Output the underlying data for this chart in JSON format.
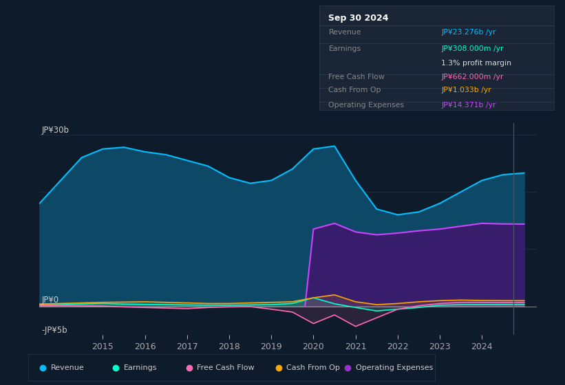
{
  "bg_color": "#0d1b2a",
  "plot_bg_color": "#0d1b2a",
  "ylabel_top": "JP¥30b",
  "ylabel_zero": "JP¥0",
  "ylabel_bottom": "-JP¥5b",
  "ylim_min": -5000000000,
  "ylim_max": 32000000000,
  "xlim_min": 2013.5,
  "xlim_max": 2025.3,
  "xticks": [
    2015,
    2016,
    2017,
    2018,
    2019,
    2020,
    2021,
    2022,
    2023,
    2024
  ],
  "legend_items": [
    {
      "label": "Revenue",
      "color": "#00bfff"
    },
    {
      "label": "Earnings",
      "color": "#00ffcc"
    },
    {
      "label": "Free Cash Flow",
      "color": "#ff69b4"
    },
    {
      "label": "Cash From Op",
      "color": "#ffa500"
    },
    {
      "label": "Operating Expenses",
      "color": "#9932cc"
    }
  ],
  "info_box_date": "Sep 30 2024",
  "info_rows": [
    {
      "label": "Revenue",
      "value": "JP¥23.276b /yr",
      "value_color": "#00bfff",
      "has_sep": true
    },
    {
      "label": "Earnings",
      "value": "JP¥308.000m /yr",
      "value_color": "#00ffcc",
      "has_sep": false
    },
    {
      "label": "",
      "value": "1.3% profit margin",
      "value_color": "#dddddd",
      "has_sep": true
    },
    {
      "label": "Free Cash Flow",
      "value": "JP¥662.000m /yr",
      "value_color": "#ff69b4",
      "has_sep": true
    },
    {
      "label": "Cash From Op",
      "value": "JP¥1.033b /yr",
      "value_color": "#ffa500",
      "has_sep": true
    },
    {
      "label": "Operating Expenses",
      "value": "JP¥14.371b /yr",
      "value_color": "#9932cc",
      "has_sep": false
    }
  ],
  "revenue_x": [
    2013.5,
    2014.0,
    2014.5,
    2015.0,
    2015.5,
    2016.0,
    2016.5,
    2017.0,
    2017.5,
    2018.0,
    2018.5,
    2019.0,
    2019.5,
    2020.0,
    2020.5,
    2021.0,
    2021.5,
    2022.0,
    2022.5,
    2023.0,
    2023.5,
    2024.0,
    2024.5,
    2025.0
  ],
  "revenue_y": [
    18000000000.0,
    22000000000.0,
    26000000000.0,
    27500000000.0,
    27800000000.0,
    27000000000.0,
    26500000000.0,
    25500000000.0,
    24500000000.0,
    22500000000.0,
    21500000000.0,
    22000000000.0,
    24000000000.0,
    27500000000.0,
    28000000000.0,
    22000000000.0,
    17000000000.0,
    16000000000.0,
    16500000000.0,
    18000000000.0,
    20000000000.0,
    22000000000.0,
    23000000000.0,
    23300000000.0
  ],
  "revenue_line_color": "#00bfff",
  "revenue_fill_color": "#0d4f6e",
  "opex_x": [
    2019.8,
    2020.0,
    2020.5,
    2021.0,
    2021.5,
    2022.0,
    2022.5,
    2023.0,
    2023.5,
    2024.0,
    2024.5,
    2025.0
  ],
  "opex_y": [
    0,
    13500000000.0,
    14500000000.0,
    13000000000.0,
    12500000000.0,
    12800000000.0,
    13200000000.0,
    13500000000.0,
    14000000000.0,
    14500000000.0,
    14400000000.0,
    14370000000.0
  ],
  "opex_line_color": "#cc44ff",
  "opex_fill_color": "#3d1a6e",
  "earnings_x": [
    2013.5,
    2014.0,
    2014.5,
    2015.0,
    2015.5,
    2016.0,
    2016.5,
    2017.0,
    2017.5,
    2018.0,
    2018.5,
    2019.0,
    2019.5,
    2020.0,
    2020.5,
    2021.0,
    2021.5,
    2022.0,
    2022.5,
    2023.0,
    2023.5,
    2024.0,
    2024.5,
    2025.0
  ],
  "earnings_y": [
    200000000.0,
    300000000.0,
    400000000.0,
    500000000.0,
    400000000.0,
    350000000.0,
    300000000.0,
    250000000.0,
    200000000.0,
    200000000.0,
    250000000.0,
    300000000.0,
    500000000.0,
    1500000000.0,
    450000000.0,
    -200000000.0,
    -800000000.0,
    -500000000.0,
    -200000000.0,
    200000000.0,
    300000000.0,
    308000000.0,
    310000000.0,
    310000000.0
  ],
  "earnings_color": "#00ffcc",
  "fcf_x": [
    2013.5,
    2014.0,
    2014.5,
    2015.0,
    2015.5,
    2016.0,
    2016.5,
    2017.0,
    2017.5,
    2018.0,
    2018.5,
    2019.0,
    2019.5,
    2020.0,
    2020.5,
    2021.0,
    2021.5,
    2022.0,
    2022.5,
    2023.0,
    2023.5,
    2024.0,
    2024.5,
    2025.0
  ],
  "fcf_y": [
    100000000.0,
    150000000.0,
    100000000.0,
    50000000.0,
    -100000000.0,
    -200000000.0,
    -300000000.0,
    -400000000.0,
    -200000000.0,
    -100000000.0,
    -50000000.0,
    -500000000.0,
    -1000000000.0,
    -3000000000.0,
    -1500000000.0,
    -3500000000.0,
    -2000000000.0,
    -500000000.0,
    100000000.0,
    500000000.0,
    700000000.0,
    700000000.0,
    662000000.0,
    662000000.0
  ],
  "fcf_color": "#ff69b4",
  "cop_x": [
    2013.5,
    2014.0,
    2014.5,
    2015.0,
    2015.5,
    2016.0,
    2016.5,
    2017.0,
    2017.5,
    2018.0,
    2018.5,
    2019.0,
    2019.5,
    2020.0,
    2020.5,
    2021.0,
    2021.5,
    2022.0,
    2022.5,
    2023.0,
    2023.5,
    2024.0,
    2024.5,
    2025.0
  ],
  "cop_y": [
    400000000.0,
    500000000.0,
    600000000.0,
    700000000.0,
    750000000.0,
    800000000.0,
    700000000.0,
    600000000.0,
    500000000.0,
    500000000.0,
    600000000.0,
    700000000.0,
    800000000.0,
    1500000000.0,
    2000000000.0,
    800000000.0,
    300000000.0,
    500000000.0,
    800000000.0,
    1000000000.0,
    1100000000.0,
    1033000000.0,
    1000000000.0,
    1000000000.0
  ],
  "cop_color": "#ffa500",
  "grid_color": "#1e2f3f",
  "zero_line_color": "#cccccc",
  "cursor_x": 2024.75,
  "cursor_color": "#445566"
}
